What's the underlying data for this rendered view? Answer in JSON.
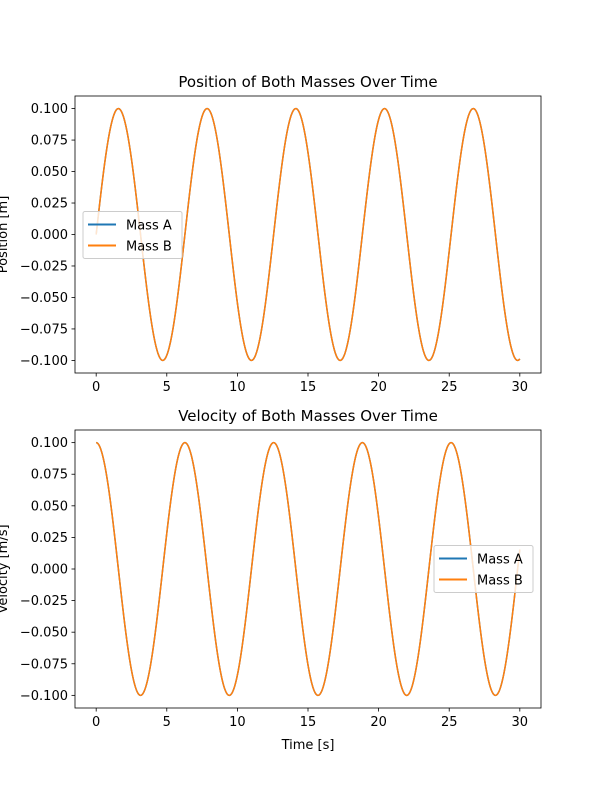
{
  "colors": {
    "mass_a": "#1f77b4",
    "mass_b": "#ff7f0e"
  },
  "chart_data": [
    {
      "type": "line",
      "title": "Position of Both Masses Over Time",
      "xlabel": "",
      "ylabel": "Position [m]",
      "xlim": [
        -1.5,
        31.5
      ],
      "ylim": [
        -0.11,
        0.11
      ],
      "xticks": [
        0,
        5,
        10,
        15,
        20,
        25,
        30
      ],
      "yticks": [
        -0.1,
        -0.075,
        -0.05,
        -0.025,
        0.0,
        0.025,
        0.05,
        0.075,
        0.1
      ],
      "ytick_labels": [
        "−0.100",
        "−0.075",
        "−0.050",
        "−0.025",
        "0.000",
        "0.025",
        "0.050",
        "0.075",
        "0.100"
      ],
      "legend_loc": "center-left",
      "series": [
        {
          "name": "Mass A",
          "color": "#1f77b4",
          "function": "0.1*sin(t)",
          "t_range": [
            0,
            30
          ]
        },
        {
          "name": "Mass B",
          "color": "#ff7f0e",
          "function": "0.1*sin(t)",
          "t_range": [
            0,
            30
          ]
        }
      ],
      "key_points": [
        {
          "t": 0,
          "value": 0.0
        },
        {
          "t": 1.57,
          "value": 0.1
        },
        {
          "t": 4.71,
          "value": -0.1
        },
        {
          "t": 7.85,
          "value": 0.1
        },
        {
          "t": 11.0,
          "value": -0.1
        },
        {
          "t": 14.14,
          "value": 0.1
        },
        {
          "t": 17.28,
          "value": -0.1
        },
        {
          "t": 20.42,
          "value": 0.1
        },
        {
          "t": 23.56,
          "value": -0.1
        },
        {
          "t": 26.7,
          "value": 0.1
        },
        {
          "t": 30,
          "value": -0.099
        }
      ]
    },
    {
      "type": "line",
      "title": "Velocity of Both Masses Over Time",
      "xlabel": "Time [s]",
      "ylabel": "Velocity [m/s]",
      "xlim": [
        -1.5,
        31.5
      ],
      "ylim": [
        -0.11,
        0.11
      ],
      "xticks": [
        0,
        5,
        10,
        15,
        20,
        25,
        30
      ],
      "yticks": [
        -0.1,
        -0.075,
        -0.05,
        -0.025,
        0.0,
        0.025,
        0.05,
        0.075,
        0.1
      ],
      "ytick_labels": [
        "−0.100",
        "−0.075",
        "−0.050",
        "−0.025",
        "0.000",
        "0.025",
        "0.050",
        "0.075",
        "0.100"
      ],
      "legend_loc": "center-right",
      "series": [
        {
          "name": "Mass A",
          "color": "#1f77b4",
          "function": "0.1*cos(t)",
          "t_range": [
            0,
            30
          ]
        },
        {
          "name": "Mass B",
          "color": "#ff7f0e",
          "function": "0.1*cos(t)",
          "t_range": [
            0,
            30
          ]
        }
      ],
      "key_points": [
        {
          "t": 0,
          "value": 0.1
        },
        {
          "t": 3.14,
          "value": -0.1
        },
        {
          "t": 6.28,
          "value": 0.1
        },
        {
          "t": 9.42,
          "value": -0.1
        },
        {
          "t": 12.57,
          "value": 0.1
        },
        {
          "t": 15.71,
          "value": -0.1
        },
        {
          "t": 18.85,
          "value": 0.1
        },
        {
          "t": 21.99,
          "value": -0.1
        },
        {
          "t": 25.13,
          "value": 0.1
        },
        {
          "t": 28.27,
          "value": -0.1
        },
        {
          "t": 30,
          "value": 0.015
        }
      ]
    }
  ]
}
